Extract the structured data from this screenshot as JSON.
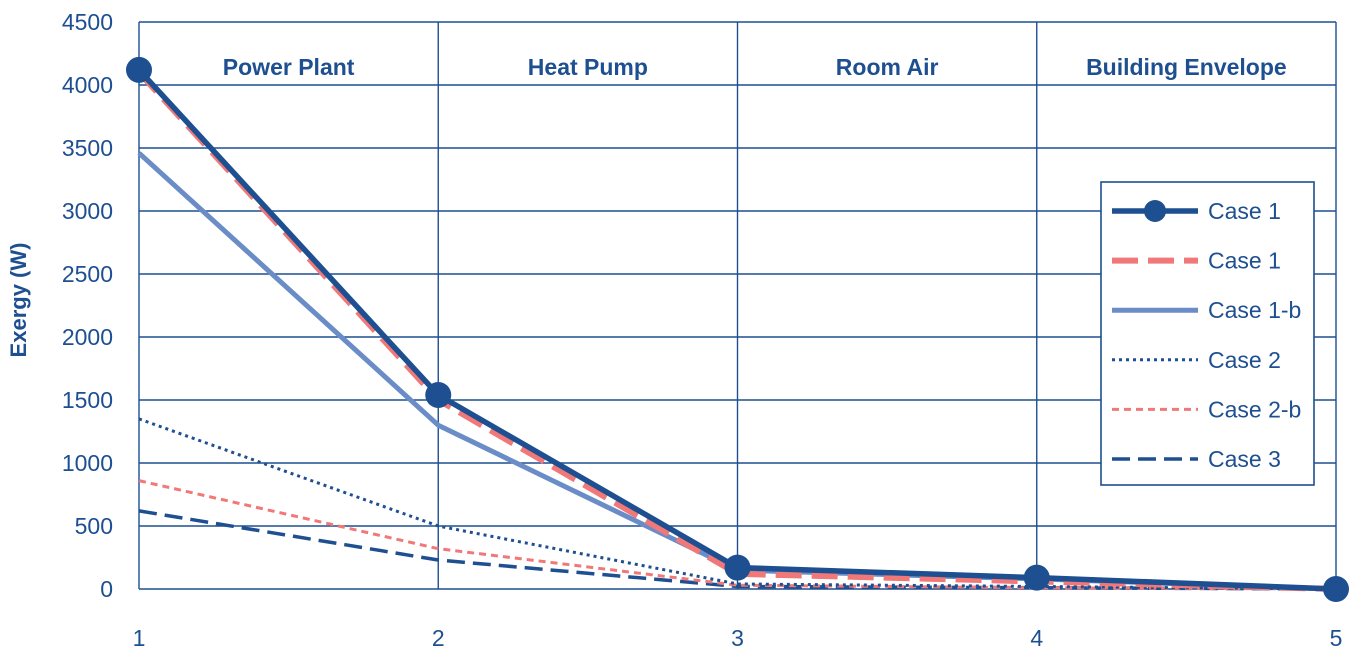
{
  "chart_data": {
    "type": "line",
    "title": "",
    "xlabel": "",
    "ylabel": "Exergy (W)",
    "x": [
      1,
      2,
      3,
      4,
      5
    ],
    "xlim": [
      1,
      5
    ],
    "ylim": [
      0,
      4500
    ],
    "yticks": [
      0,
      500,
      1000,
      1500,
      2000,
      2500,
      3000,
      3500,
      4000,
      4500
    ],
    "grid": true,
    "legend_position": "right",
    "regions": [
      {
        "label": "Power Plant",
        "from": 1,
        "to": 2
      },
      {
        "label": "Heat Pump",
        "from": 2,
        "to": 3
      },
      {
        "label": "Room Air",
        "from": 3,
        "to": 4
      },
      {
        "label": "Building Envelope",
        "from": 4,
        "to": 5
      }
    ],
    "series": [
      {
        "name": "Case 1",
        "values": [
          4120,
          1540,
          170,
          90,
          0
        ],
        "color": "#1d4f91",
        "style": "solid-marker"
      },
      {
        "name": "Case 1",
        "values": [
          4100,
          1500,
          120,
          60,
          0
        ],
        "color": "#f07878",
        "style": "dashed"
      },
      {
        "name": "Case 1-b",
        "values": [
          3460,
          1300,
          150,
          80,
          0
        ],
        "color": "#6a8cc7",
        "style": "solid"
      },
      {
        "name": "Case 2",
        "values": [
          1350,
          500,
          40,
          20,
          0
        ],
        "color": "#1d4f91",
        "style": "dotted"
      },
      {
        "name": "Case 2-b",
        "values": [
          860,
          320,
          30,
          10,
          0
        ],
        "color": "#f07878",
        "style": "short-dash"
      },
      {
        "name": "Case 3",
        "values": [
          620,
          230,
          20,
          10,
          0
        ],
        "color": "#1d4f91",
        "style": "long-dash"
      }
    ],
    "colors": {
      "axis": "#1d4f91",
      "grid": "#1d4f91"
    }
  }
}
